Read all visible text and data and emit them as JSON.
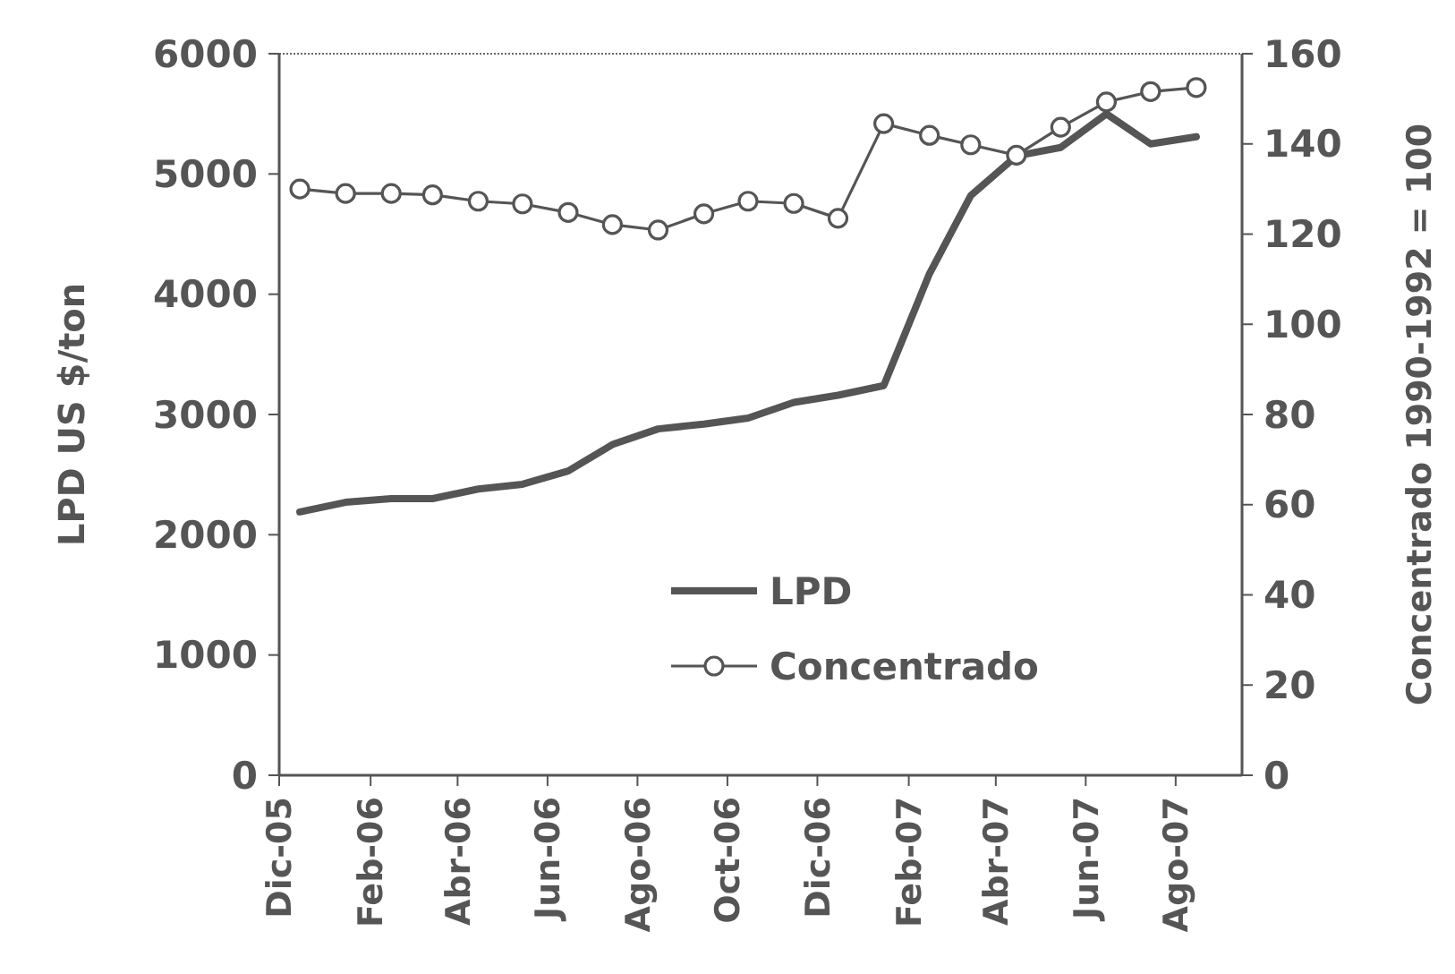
{
  "chart_data": {
    "type": "line",
    "ylabel": "LPD US $/ton",
    "y2label": "Concentrado 1990-1992 = 100",
    "x": [
      "2005-12-15",
      "2006-01-15",
      "2006-02-15",
      "2006-03-15",
      "2006-04-15",
      "2006-05-15",
      "2006-06-15",
      "2006-07-15",
      "2006-08-15",
      "2006-09-15",
      "2006-10-15",
      "2006-11-15",
      "2006-12-15",
      "2007-01-15",
      "2007-02-15",
      "2007-03-15",
      "2007-04-15",
      "2007-05-15",
      "2007-06-15",
      "2007-07-15",
      "2007-08-15"
    ],
    "series": [
      {
        "name": "LPD",
        "color": "#555555",
        "marker": "none",
        "values": [
          2190,
          2270,
          2300,
          2300,
          2380,
          2420,
          2530,
          2750,
          2880,
          2920,
          2970,
          3100,
          3160,
          3240,
          4170,
          4820,
          5150,
          5220,
          5500,
          5250,
          5310
        ]
      },
      {
        "name": "Concentrado",
        "color": "#555555",
        "marker": "circle",
        "axis": "y2",
        "values": [
          130,
          129,
          129,
          128.7,
          127.3,
          126.7,
          124.8,
          122.1,
          120.9,
          124.5,
          127.3,
          126.8,
          123.5,
          144.5,
          141.9,
          139.8,
          137.5,
          143.7,
          149.3,
          151.6,
          152.5
        ]
      }
    ],
    "xlim": [
      "2005-12-01",
      "2007-09-15"
    ],
    "xticks": [
      {
        "value": "2005-12-01",
        "label": "Dic-05"
      },
      {
        "value": "2006-02-01",
        "label": "Feb-06"
      },
      {
        "value": "2006-04-01",
        "label": "Abr-06"
      },
      {
        "value": "2006-06-01",
        "label": "Jun-06"
      },
      {
        "value": "2006-08-01",
        "label": "Ago-06"
      },
      {
        "value": "2006-10-01",
        "label": "Oct-06"
      },
      {
        "value": "2006-12-01",
        "label": "Dic-06"
      },
      {
        "value": "2007-02-01",
        "label": "Feb-07"
      },
      {
        "value": "2007-04-01",
        "label": "Abr-07"
      },
      {
        "value": "2007-06-01",
        "label": "Jun-07"
      },
      {
        "value": "2007-08-01",
        "label": "Ago-07"
      }
    ],
    "ylim": [
      0,
      6000
    ],
    "yticks": [
      0,
      1000,
      2000,
      3000,
      4000,
      5000,
      6000
    ],
    "y2lim": [
      0,
      160
    ],
    "y2ticks": [
      0,
      20,
      40,
      60,
      80,
      100,
      120,
      140,
      160
    ],
    "grid": false,
    "legend": "bottom",
    "line_style": "solid"
  }
}
